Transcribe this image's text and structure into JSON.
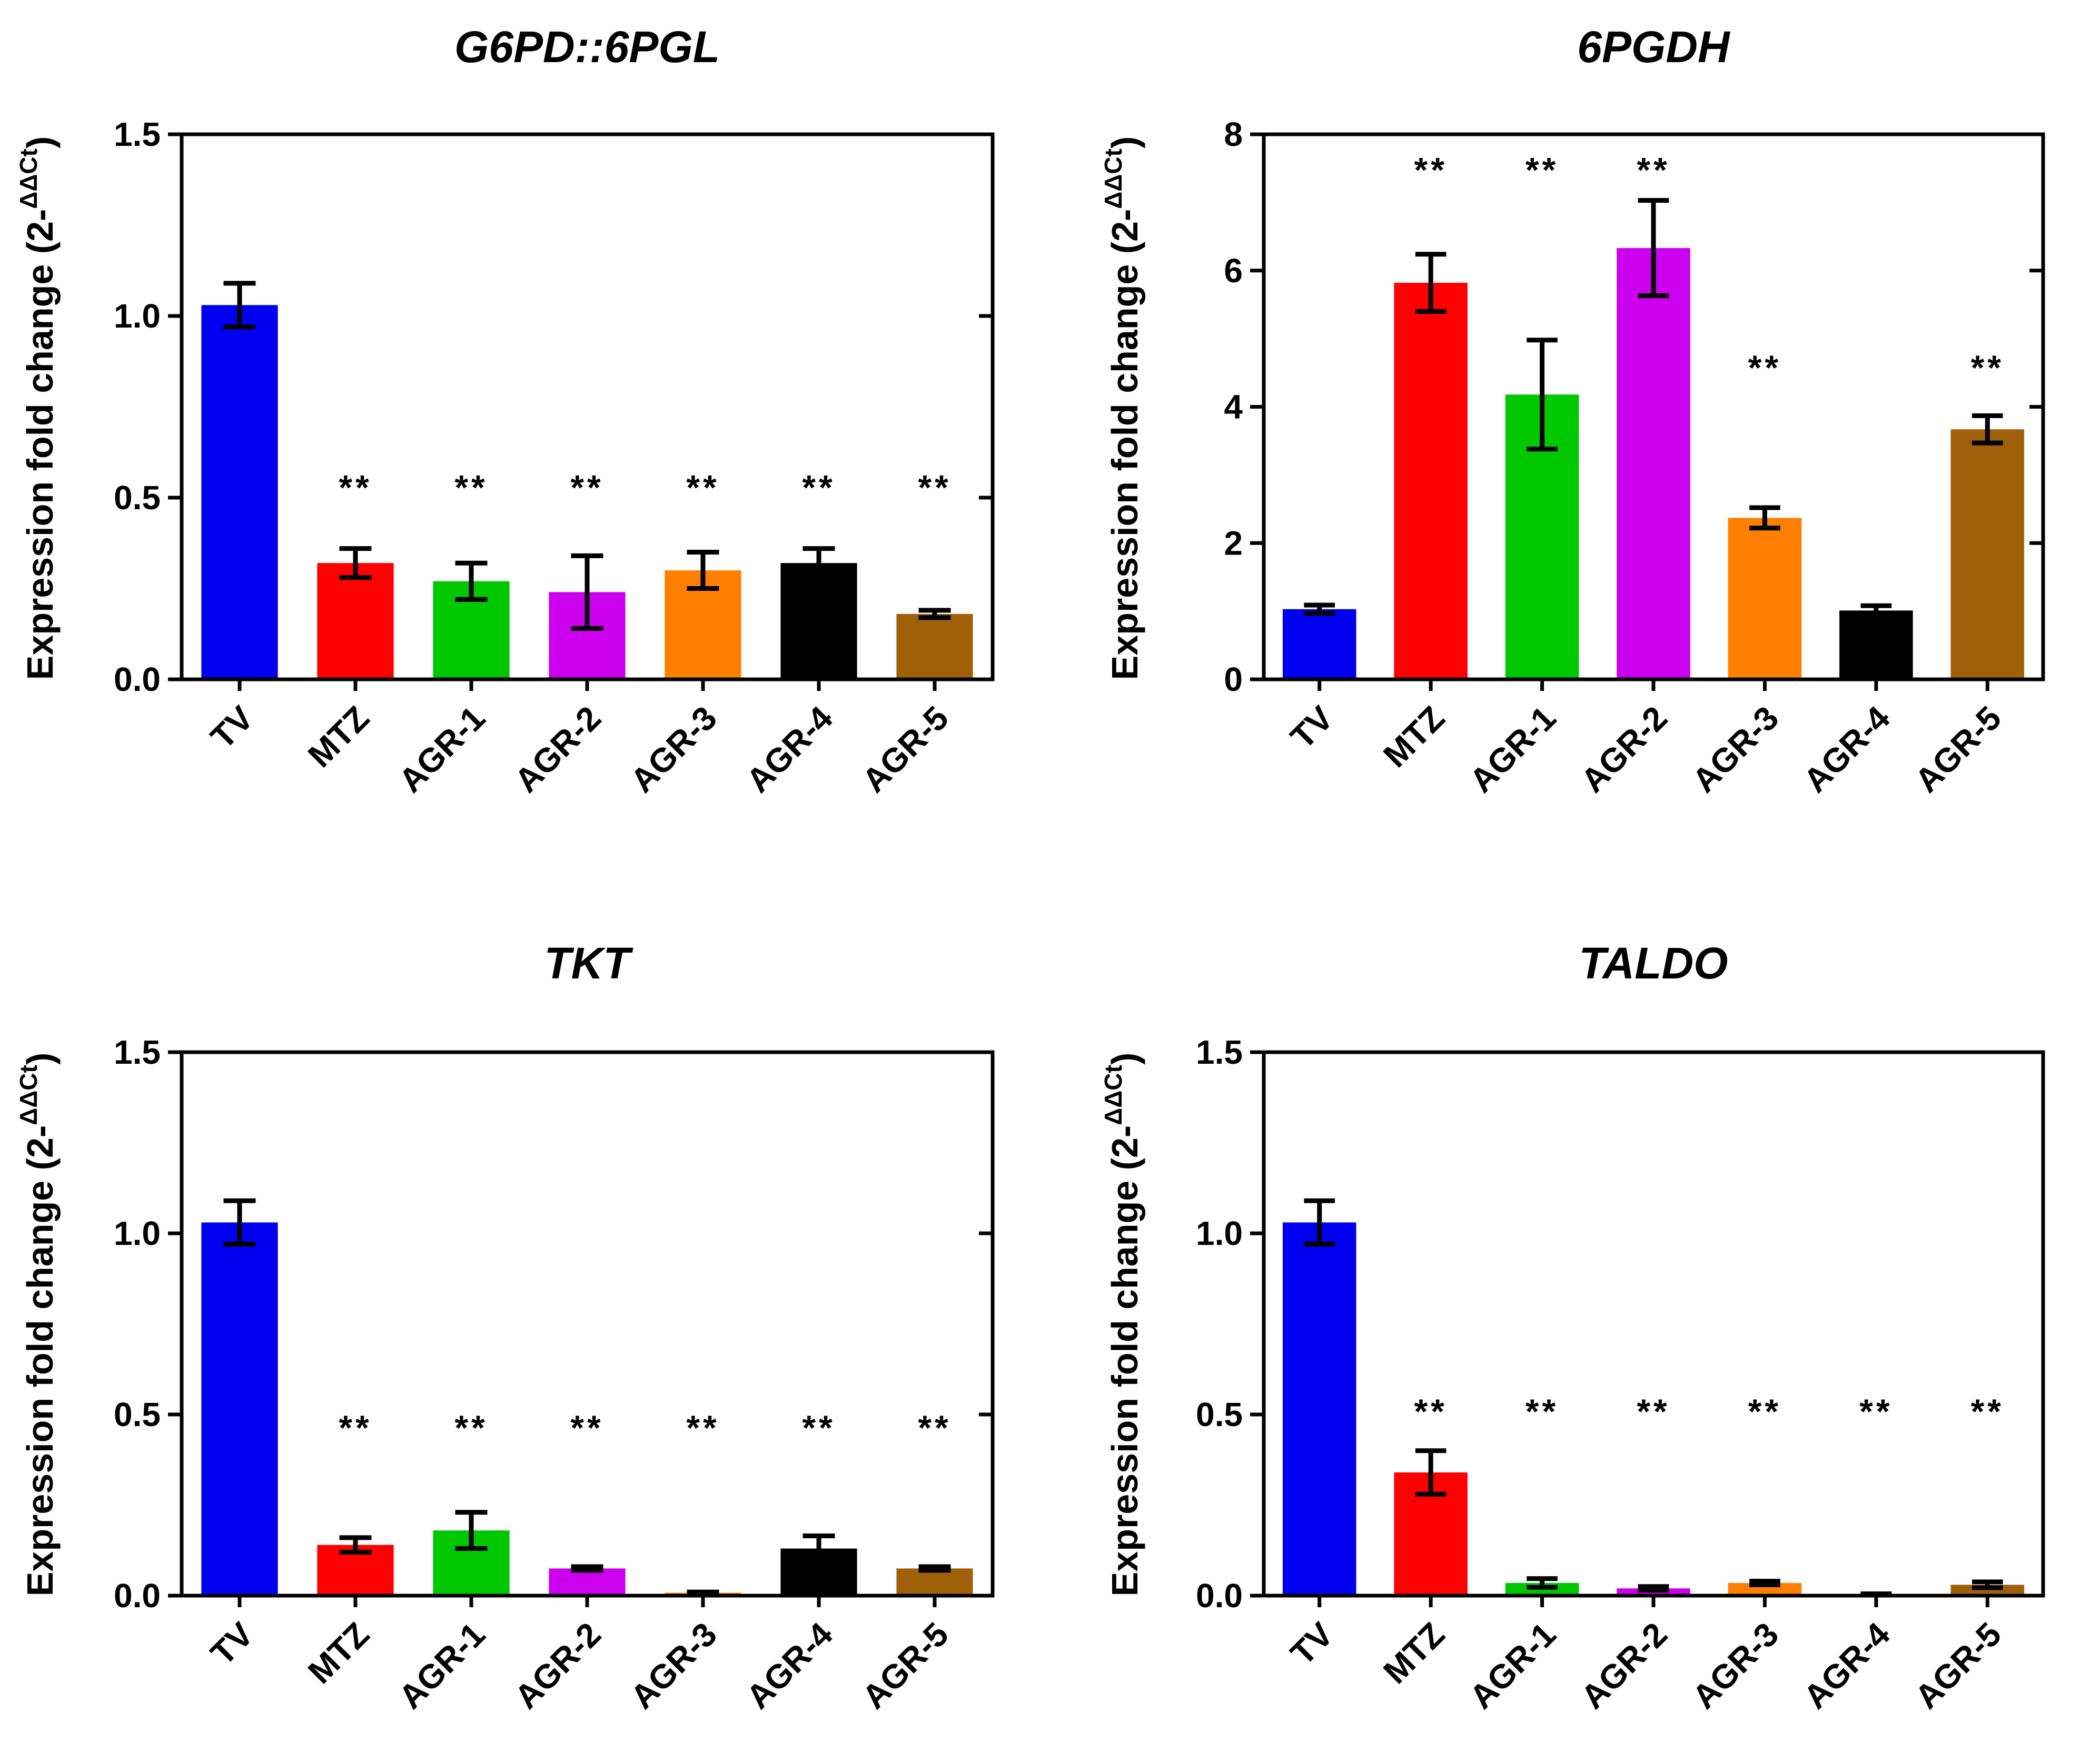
{
  "chart_data": [
    {
      "type": "bar",
      "title": "G6PD::6PGL",
      "ylabel": "Expression fold change (2-",
      "ylabel_superscript": "ΔΔCt",
      "ylabel_close": ")",
      "ylim": [
        0,
        1.5
      ],
      "yticks": [
        "0.0",
        "0.5",
        "1.0",
        "1.5"
      ],
      "ytick_values": [
        0,
        0.5,
        1.0,
        1.5
      ],
      "categories": [
        "TV",
        "MTZ",
        "AGR-1",
        "AGR-2",
        "AGR-3",
        "AGR-4",
        "AGR-5"
      ],
      "values": [
        1.03,
        0.32,
        0.27,
        0.24,
        0.3,
        0.32,
        0.18
      ],
      "errors": [
        0.06,
        0.04,
        0.05,
        0.1,
        0.05,
        0.04,
        0.01
      ],
      "significance": [
        "",
        "**",
        "**",
        "**",
        "**",
        "**",
        "**"
      ],
      "sig_level": 0.495
    },
    {
      "type": "bar",
      "title": "6PGDH",
      "ylabel": "Expression fold change (2-",
      "ylabel_superscript": "ΔΔCt",
      "ylabel_close": ")",
      "ylim": [
        0,
        8
      ],
      "yticks": [
        "0",
        "2",
        "4",
        "6",
        "8"
      ],
      "ytick_values": [
        0,
        2,
        4,
        6,
        8
      ],
      "categories": [
        "TV",
        "MTZ",
        "AGR-1",
        "AGR-2",
        "AGR-3",
        "AGR-4",
        "AGR-5"
      ],
      "values": [
        1.03,
        5.82,
        4.18,
        6.33,
        2.37,
        1.01,
        3.67
      ],
      "errors": [
        0.06,
        0.42,
        0.8,
        0.7,
        0.15,
        0.07,
        0.2
      ],
      "significance": [
        "",
        "**",
        "**",
        "**",
        "**",
        "",
        "**"
      ],
      "sig_levels": [
        0,
        7.3,
        7.3,
        7.3,
        4.4,
        0,
        4.4
      ]
    },
    {
      "type": "bar",
      "title": "TKT",
      "ylabel": "Expression fold change (2-",
      "ylabel_superscript": "ΔΔCt",
      "ylabel_close": ")",
      "ylim": [
        0,
        1.5
      ],
      "yticks": [
        "0.0",
        "0.5",
        "1.0",
        "1.5"
      ],
      "ytick_values": [
        0,
        0.5,
        1.0,
        1.5
      ],
      "categories": [
        "TV",
        "MTZ",
        "AGR-1",
        "AGR-2",
        "AGR-3",
        "AGR-4",
        "AGR-5"
      ],
      "values": [
        1.03,
        0.14,
        0.18,
        0.075,
        0.008,
        0.13,
        0.075
      ],
      "errors": [
        0.06,
        0.02,
        0.05,
        0.005,
        0.002,
        0.035,
        0.005
      ],
      "significance": [
        "",
        "**",
        "**",
        "**",
        "**",
        "**",
        "**"
      ],
      "sig_level": 0.43
    },
    {
      "type": "bar",
      "title": "TALDO",
      "ylabel": "Expression fold change (2-",
      "ylabel_superscript": "ΔΔCt",
      "ylabel_close": ")",
      "ylim": [
        0,
        1.5
      ],
      "yticks": [
        "0.0",
        "0.5",
        "1.0",
        "1.5"
      ],
      "ytick_values": [
        0,
        0.5,
        1.0,
        1.5
      ],
      "categories": [
        "TV",
        "MTZ",
        "AGR-1",
        "AGR-2",
        "AGR-3",
        "AGR-4",
        "AGR-5"
      ],
      "values": [
        1.03,
        0.34,
        0.035,
        0.02,
        0.035,
        0.004,
        0.03
      ],
      "errors": [
        0.06,
        0.06,
        0.012,
        0.005,
        0.005,
        0.001,
        0.008
      ],
      "significance": [
        "",
        "**",
        "**",
        "**",
        "**",
        "**",
        "**"
      ],
      "sig_level": 0.475
    }
  ],
  "colors": {
    "bars": [
      "#0000f0",
      "#ff0000",
      "#00c800",
      "#cc00ee",
      "#ff8000",
      "#000000",
      "#a0600a"
    ],
    "axis": "#000000"
  }
}
